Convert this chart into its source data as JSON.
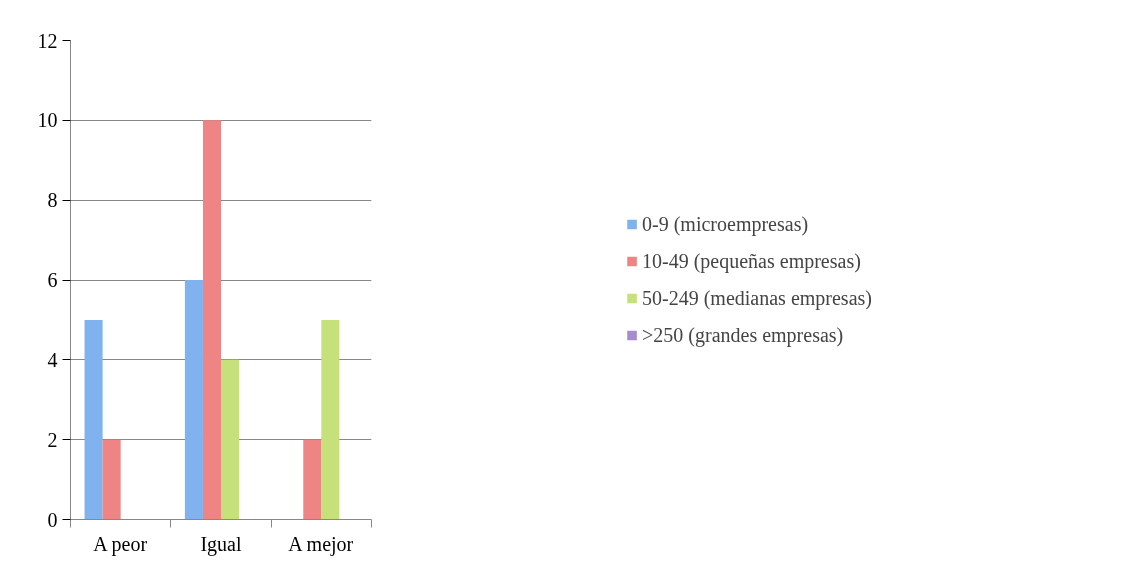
{
  "chart_data": {
    "type": "bar",
    "categories": [
      "A peor",
      "Igual",
      "A mejor"
    ],
    "series": [
      {
        "name": "0-9 (microempresas)",
        "color": "#7fb2ee",
        "values": [
          5,
          6,
          0
        ]
      },
      {
        "name": "10-49 (pequeñas empresas)",
        "color": "#ee8484",
        "values": [
          2,
          10,
          2
        ]
      },
      {
        "name": "50-249 (medianas empresas)",
        "color": "#c6e07c",
        "values": [
          0,
          4,
          5
        ]
      },
      {
        "name": ">250 (grandes empresas)",
        "color": "#a58bd0",
        "values": [
          0,
          0,
          0
        ]
      }
    ],
    "ylim": [
      0,
      12
    ],
    "yticks": [
      0,
      2,
      4,
      6,
      8,
      10,
      12
    ],
    "grid": "y",
    "legend": "right"
  }
}
